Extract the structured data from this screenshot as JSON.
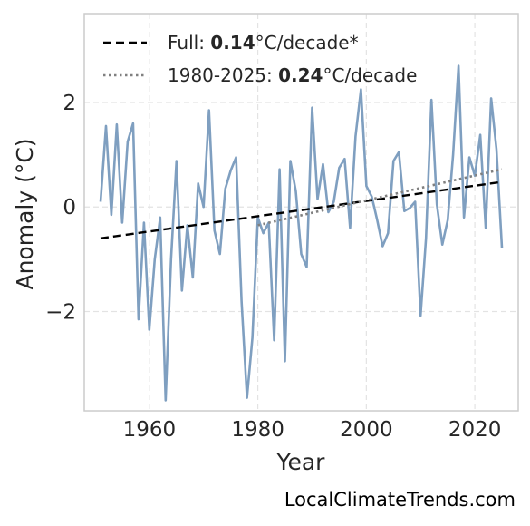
{
  "chart_data": {
    "type": "line",
    "title": "",
    "xlabel": "Year",
    "ylabel": "Anomaly (°C)",
    "xlim": [
      1948,
      2028
    ],
    "ylim": [
      -3.9,
      3.7
    ],
    "x_ticks": [
      1960,
      1980,
      2000,
      2020
    ],
    "y_ticks": [
      -2,
      0,
      2
    ],
    "y_tick_labels": [
      "−2",
      "0",
      "2"
    ],
    "grid": true,
    "legend_position": "top-left",
    "series": [
      {
        "name": "",
        "style": "solid",
        "color": "#7f9fc0",
        "x": [
          1951,
          1952,
          1953,
          1954,
          1955,
          1956,
          1957,
          1958,
          1959,
          1960,
          1961,
          1962,
          1963,
          1964,
          1965,
          1966,
          1967,
          1968,
          1969,
          1970,
          1971,
          1972,
          1973,
          1974,
          1975,
          1976,
          1977,
          1978,
          1979,
          1980,
          1981,
          1982,
          1983,
          1984,
          1985,
          1986,
          1987,
          1988,
          1989,
          1990,
          1991,
          1992,
          1993,
          1994,
          1995,
          1996,
          1997,
          1998,
          1999,
          2000,
          2001,
          2002,
          2003,
          2004,
          2005,
          2006,
          2007,
          2008,
          2009,
          2010,
          2011,
          2012,
          2013,
          2014,
          2015,
          2016,
          2017,
          2018,
          2019,
          2020,
          2021,
          2022,
          2023,
          2024,
          2025
        ],
        "y": [
          0.1,
          1.55,
          -0.15,
          1.58,
          -0.3,
          1.25,
          1.6,
          -2.15,
          -0.3,
          -2.35,
          -1.0,
          -0.2,
          -3.7,
          -1.0,
          0.88,
          -1.6,
          -0.35,
          -1.35,
          0.45,
          0.0,
          1.85,
          -0.45,
          -0.9,
          0.35,
          0.7,
          0.95,
          -1.8,
          -3.65,
          -2.5,
          -0.2,
          -0.5,
          -0.3,
          -2.55,
          0.72,
          -2.95,
          0.88,
          0.3,
          -0.9,
          -1.15,
          1.9,
          0.15,
          0.82,
          -0.1,
          0.1,
          0.75,
          0.92,
          -0.4,
          1.35,
          2.25,
          0.4,
          0.2,
          -0.25,
          -0.75,
          -0.5,
          0.88,
          1.05,
          -0.08,
          -0.02,
          0.1,
          -2.08,
          -0.6,
          2.05,
          0.05,
          -0.72,
          -0.25,
          1.0,
          2.7,
          -0.2,
          0.95,
          0.6,
          1.38,
          -0.4,
          2.08,
          1.1,
          -0.78
        ]
      },
      {
        "name": "Full",
        "style": "dashed",
        "color": "#000000",
        "x": [
          1951,
          2025
        ],
        "y": [
          -0.6,
          0.48
        ],
        "label_bold": "0.14",
        "label_suffix": "°C/decade*"
      },
      {
        "name": "1980-2025",
        "style": "dotted",
        "color": "#808080",
        "x": [
          1980,
          2025
        ],
        "y": [
          -0.35,
          0.72
        ],
        "label_bold": "0.24",
        "label_suffix": "°C/decade"
      }
    ]
  },
  "watermark": "LocalClimateTrends.com"
}
